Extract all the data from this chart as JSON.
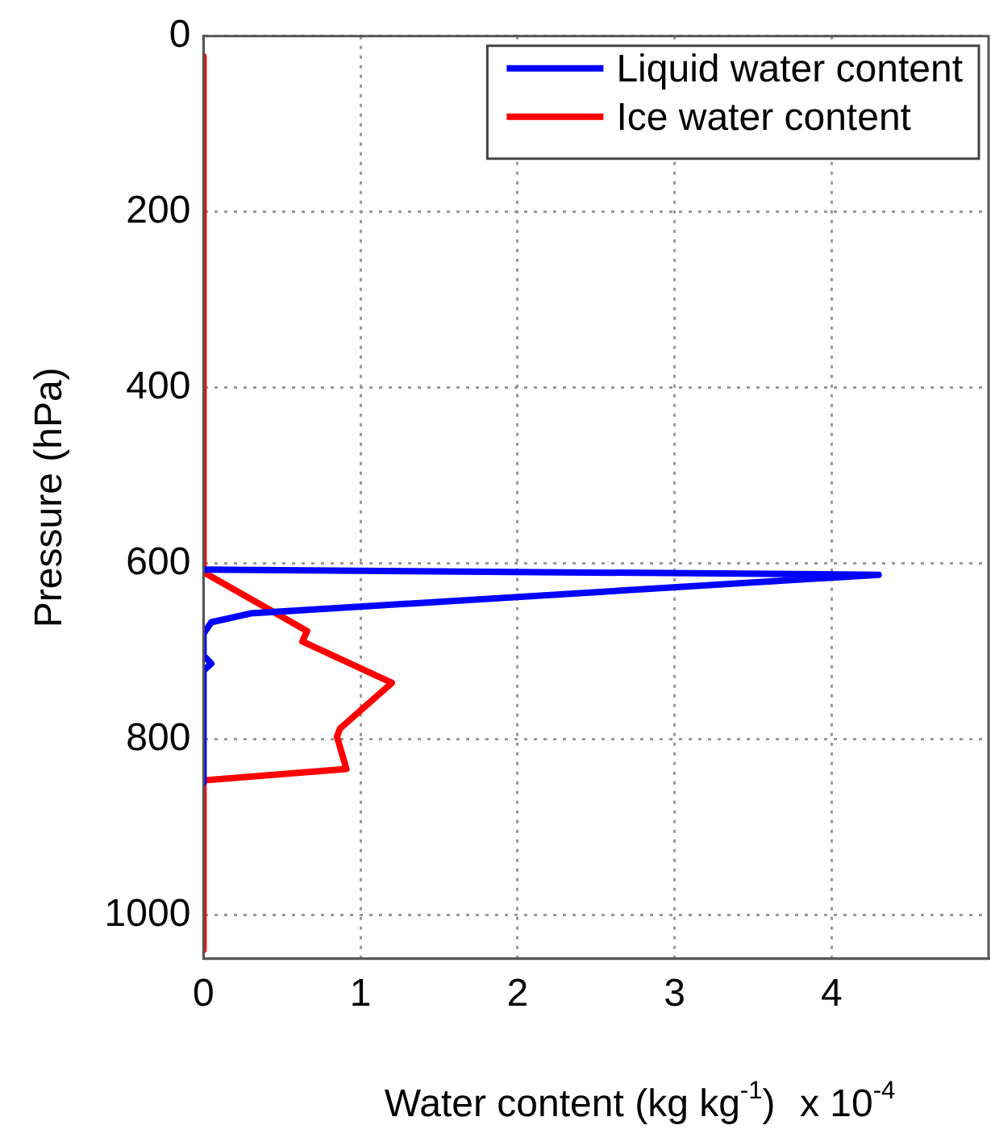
{
  "chart_data": {
    "type": "line",
    "xlabel": "Water content (kg kg$^{-1}$)",
    "ylabel": "Pressure (hPa)",
    "annotations": [
      "x 10$^{-4}$"
    ],
    "xlim": [
      0,
      5
    ],
    "xticks": [
      0,
      1,
      2,
      3,
      4
    ],
    "ylim": [
      1050,
      0
    ],
    "yticks": [
      0,
      200,
      400,
      600,
      800,
      1000
    ],
    "grid": true,
    "legend": "top right",
    "marker": "none",
    "line_style": "solid",
    "series": [
      {
        "name": "Liquid water content",
        "color": "#0000ff",
        "x": [
          0,
          4.3,
          0.3,
          0.05,
          0,
          0,
          0.05,
          0,
          0
        ],
        "values": [
          607,
          613,
          657,
          667,
          680,
          705,
          714,
          722,
          850
        ]
      },
      {
        "name": "Ice water content",
        "color": "#ff0000",
        "x": [
          0,
          0,
          0.66,
          0.63,
          1.2,
          0.87,
          0.85,
          0.91,
          0,
          0
        ],
        "values": [
          23,
          610,
          677,
          689,
          736,
          788,
          797,
          834,
          847,
          1040
        ]
      }
    ]
  }
}
